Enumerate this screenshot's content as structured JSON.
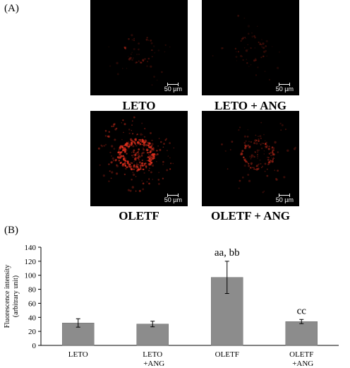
{
  "panels": {
    "label_a": "(A)",
    "label_b": "(B)"
  },
  "images": [
    {
      "caption": "LETO",
      "scale_text": "50 µm",
      "intensity": "low"
    },
    {
      "caption": "LETO + ANG",
      "scale_text": "50 µm",
      "intensity": "low"
    },
    {
      "caption": "OLETF",
      "scale_text": "50 µm",
      "intensity": "high"
    },
    {
      "caption": "OLETF + ANG",
      "scale_text": "50 µm",
      "intensity": "medium"
    }
  ],
  "colors": {
    "bar_fill": "#8c8c8c",
    "signal": "#e0301e"
  },
  "chart_data": {
    "type": "bar",
    "categories": [
      "LETO",
      "LETO\n+ANG",
      "OLETF",
      "OLETF\n+ANG"
    ],
    "values": [
      32,
      30.5,
      97,
      34
    ],
    "errors": [
      6,
      4,
      23,
      3
    ],
    "annotations": [
      "",
      "",
      "aa, bb",
      "cc"
    ],
    "ylabel": "Fluorescence intensity\n(arbitrary unit)",
    "xlabel": "",
    "ylim": [
      0,
      140
    ],
    "yticks": [
      0,
      20,
      40,
      60,
      80,
      100,
      120,
      140
    ],
    "grid": false
  }
}
